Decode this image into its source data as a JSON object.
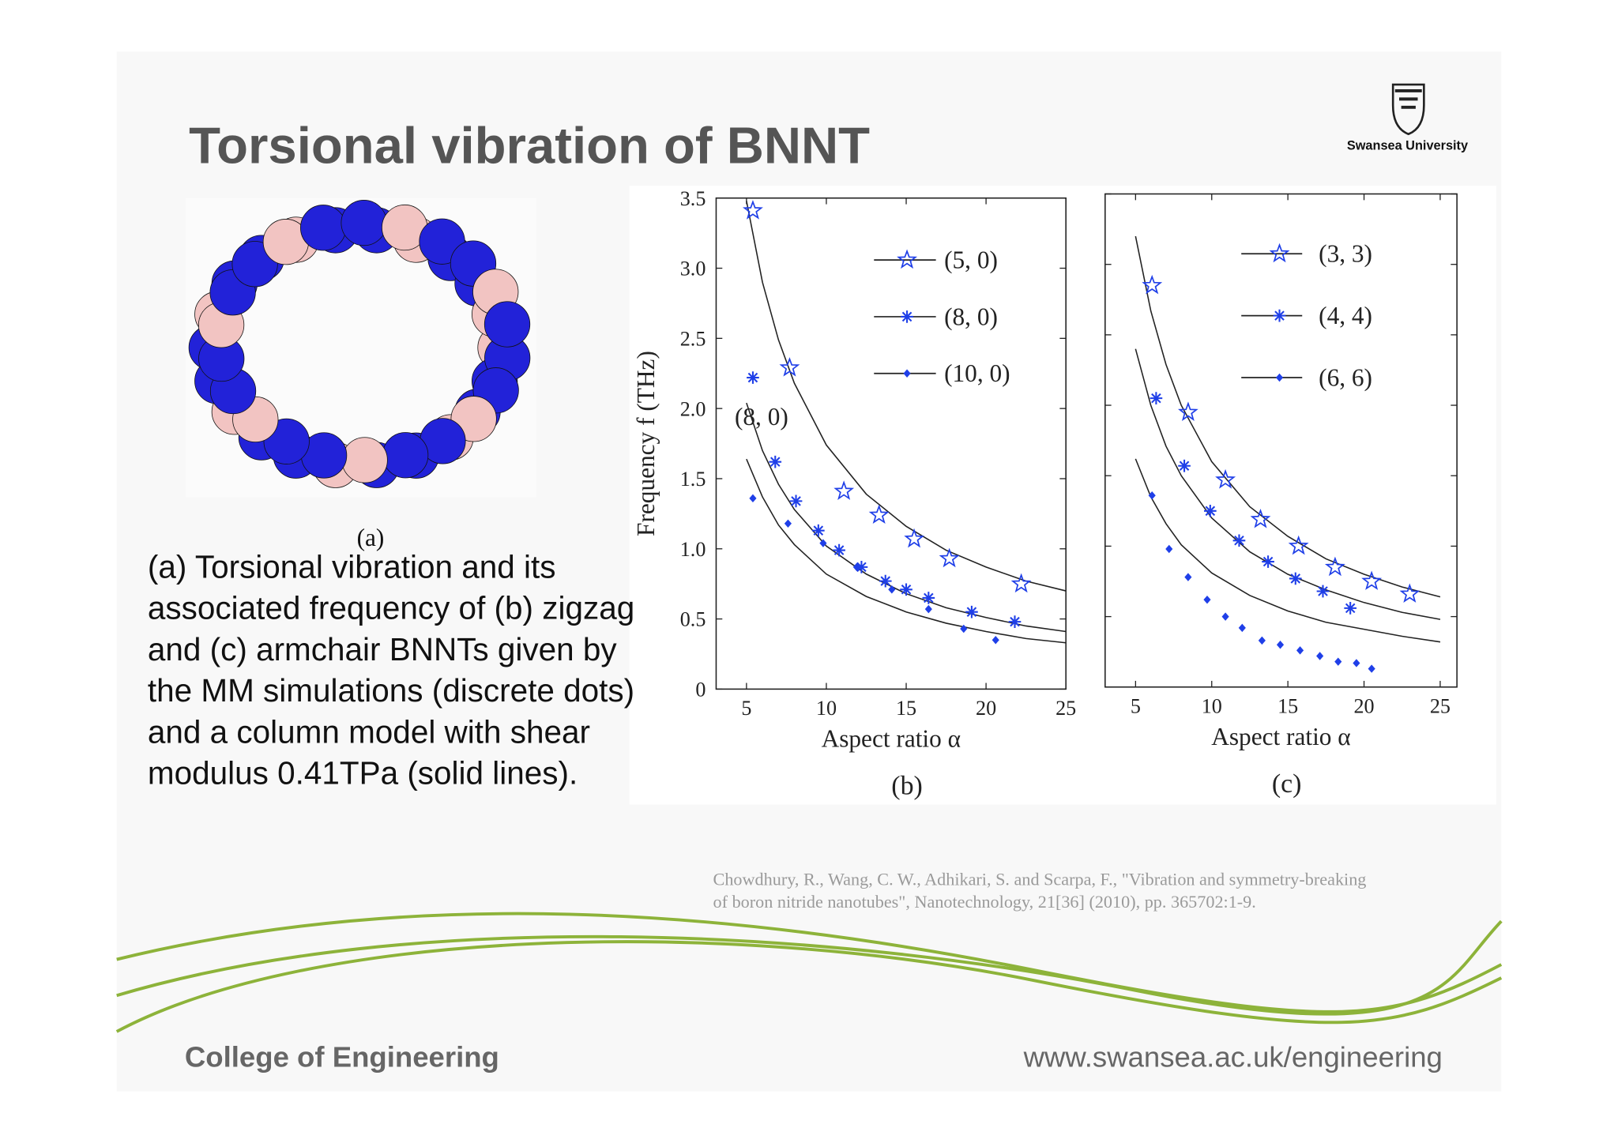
{
  "slide": {
    "title": "Torsional vibration of BNNT",
    "logo": "Swansea University",
    "panel_a": "(a)",
    "caption": [
      "(a) Torsional vibration and its",
      "associated frequency of (b) zigzag",
      "and (c) armchair BNNTs given by",
      "the MM simulations (discrete dots)",
      "and a column model with shear",
      "modulus 0.41TPa (solid lines)."
    ],
    "citation": [
      "Chowdhury, R., Wang, C. W., Adhikari, S. and Scarpa, F., \"Vibration and symmetry-breaking",
      "of boron nitride nanotubes\", Nanotechnology, 21[36] (2010), pp. 365702:1-9."
    ],
    "footer_left": "College of Engineering",
    "footer_right": "www.swansea.ac.uk/engineering"
  },
  "chart_data": [
    {
      "type": "scatter",
      "panel": "(b)",
      "xlabel": "Aspect ratio α",
      "ylabel": "Frequency f (THz)",
      "annotations": [
        "(8, 0)"
      ],
      "xlim": [
        3.1,
        25
      ],
      "ylim": [
        0,
        3.5
      ],
      "xticks": [
        5,
        10,
        15,
        20,
        25
      ],
      "yticks": [
        0,
        0.5,
        {
          "value": 1,
          "label": "1.0"
        },
        1.5,
        {
          "value": 2,
          "label": "2.0"
        },
        2.5,
        {
          "value": 3,
          "label": "3.0"
        },
        3.5
      ],
      "ytick_labels": true,
      "fit_x": [
        5,
        6,
        7,
        8,
        10,
        12.5,
        15,
        17.5,
        20,
        22.5,
        25
      ],
      "series": [
        {
          "name": "(5, 0)",
          "color": "#1f3fe8",
          "marker": "star",
          "x": [
            5.4,
            7.7,
            11.1,
            13.3,
            15.5,
            17.7,
            22.2
          ],
          "values": [
            3.41,
            2.29,
            1.41,
            1.24,
            1.07,
            0.93,
            0.75
          ],
          "fit_values": [
            3.48,
            2.9,
            2.49,
            2.18,
            1.74,
            1.39,
            1.16,
            0.99,
            0.87,
            0.77,
            0.7
          ]
        },
        {
          "name": "(8, 0)",
          "color": "#1f3fe8",
          "marker": "asterisk",
          "x": [
            5.4,
            6.8,
            8.1,
            9.5,
            10.8,
            12.2,
            13.7,
            15,
            16.4,
            19.1,
            21.8
          ],
          "values": [
            2.22,
            1.62,
            1.34,
            1.13,
            0.99,
            0.87,
            0.77,
            0.71,
            0.65,
            0.55,
            0.48
          ],
          "fit_values": [
            2.04,
            1.7,
            1.46,
            1.28,
            1.02,
            0.82,
            0.68,
            0.58,
            0.51,
            0.45,
            0.41
          ]
        },
        {
          "name": "(10, 0)",
          "color": "#1f3fe8",
          "marker": "diamond",
          "x": [
            5.4,
            7.6,
            9.8,
            11.9,
            14.1,
            16.4,
            18.6,
            20.6
          ],
          "values": [
            1.36,
            1.18,
            1.04,
            0.87,
            0.71,
            0.57,
            0.43,
            0.35
          ],
          "fit_values": [
            1.64,
            1.37,
            1.17,
            1.03,
            0.82,
            0.66,
            0.55,
            0.47,
            0.41,
            0.36,
            0.33
          ]
        }
      ]
    },
    {
      "type": "scatter",
      "panel": "(c)",
      "xlabel": "Aspect ratio α",
      "annotations": [],
      "xlim": [
        3.0,
        26.1
      ],
      "ylim": [
        0,
        3.5
      ],
      "xticks": [
        5,
        10,
        15,
        20,
        25
      ],
      "yticks": [
        0,
        0.5,
        1,
        1.5,
        2,
        2.5,
        3,
        3.5
      ],
      "ytick_labels": false,
      "fit_x": [
        5,
        6,
        7,
        8,
        10,
        12.5,
        15,
        17.5,
        20,
        22.5,
        25
      ],
      "series": [
        {
          "name": "(3, 3)",
          "color": "#1f3fe8",
          "marker": "star",
          "x": [
            6.08,
            8.45,
            10.9,
            13.2,
            15.7,
            18.1,
            20.5,
            23
          ],
          "values": [
            2.85,
            1.95,
            1.47,
            1.19,
            1,
            0.85,
            0.75,
            0.66
          ],
          "fit_values": [
            3.2,
            2.67,
            2.29,
            2,
            1.6,
            1.28,
            1.07,
            0.91,
            0.8,
            0.71,
            0.64
          ]
        },
        {
          "name": "(4, 4)",
          "color": "#1f3fe8",
          "marker": "asterisk",
          "x": [
            6.35,
            8.2,
            9.9,
            11.8,
            13.7,
            15.5,
            17.3,
            19.1
          ],
          "values": [
            2.05,
            1.57,
            1.25,
            1.04,
            0.89,
            0.77,
            0.68,
            0.56
          ],
          "fit_values": [
            2.4,
            2,
            1.71,
            1.5,
            1.2,
            0.96,
            0.8,
            0.69,
            0.6,
            0.53,
            0.48
          ]
        },
        {
          "name": "(6, 6)",
          "color": "#1f3fe8",
          "marker": "diamond",
          "x": [
            6.08,
            7.2,
            8.45,
            9.7,
            10.9,
            12,
            13.3,
            14.5,
            15.8,
            17.1,
            18.3,
            19.5,
            20.5
          ],
          "values": [
            1.36,
            0.98,
            0.78,
            0.62,
            0.5,
            0.42,
            0.33,
            0.3,
            0.26,
            0.22,
            0.18,
            0.17,
            0.13
          ],
          "fit_values": [
            1.62,
            1.35,
            1.16,
            1.01,
            0.81,
            0.65,
            0.54,
            0.46,
            0.41,
            0.36,
            0.32
          ]
        }
      ]
    }
  ]
}
